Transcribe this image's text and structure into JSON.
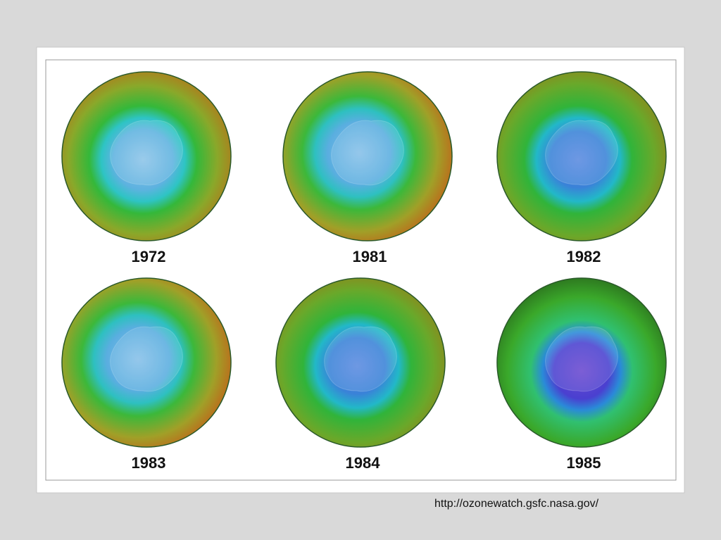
{
  "panels": [
    {
      "label": "1972"
    },
    {
      "label": "1981"
    },
    {
      "label": "1982"
    },
    {
      "label": "1983"
    },
    {
      "label": "1984"
    },
    {
      "label": "1985"
    }
  ],
  "source": "http://ozonewatch.gsfc.nasa.gov/"
}
